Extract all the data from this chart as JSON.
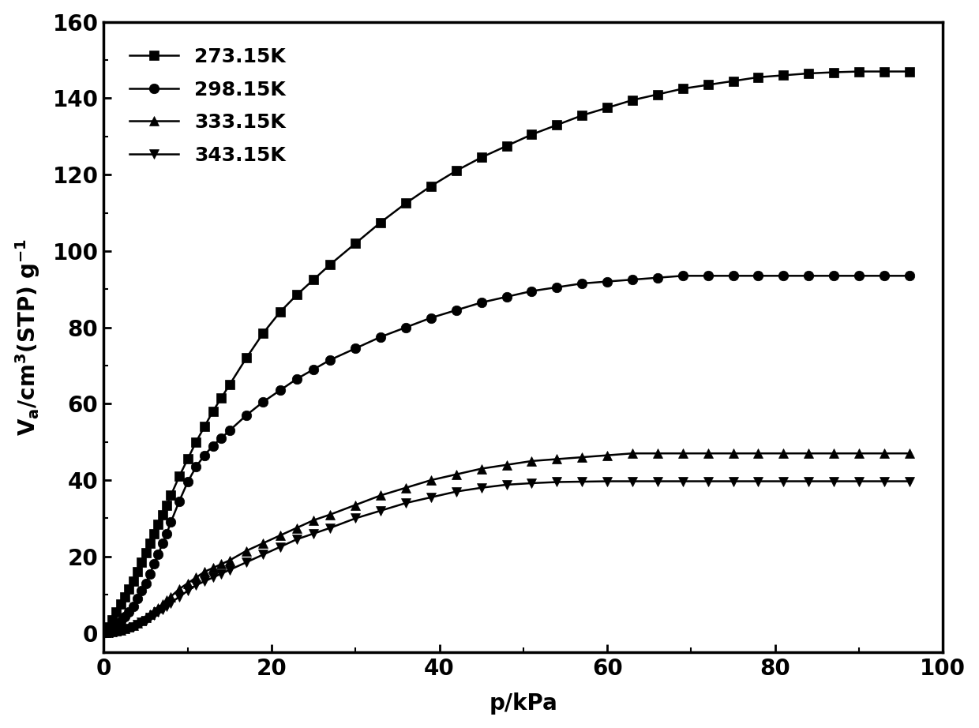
{
  "title": "",
  "xlabel": "p/kPa",
  "ylabel_text": "V_a/cm^3(STP) g^{-1}",
  "xlim": [
    0,
    100
  ],
  "ylim": [
    -5,
    160
  ],
  "xticks": [
    0,
    20,
    40,
    60,
    80,
    100
  ],
  "yticks": [
    0,
    20,
    40,
    60,
    80,
    100,
    120,
    140,
    160
  ],
  "series": [
    {
      "label": "273.15K",
      "marker": "s",
      "x": [
        0.2,
        0.5,
        1.0,
        1.5,
        2.0,
        2.5,
        3.0,
        3.5,
        4.0,
        4.5,
        5.0,
        5.5,
        6.0,
        6.5,
        7.0,
        7.5,
        8.0,
        9.0,
        10.0,
        11.0,
        12.0,
        13.0,
        14.0,
        15.0,
        17.0,
        19.0,
        21.0,
        23.0,
        25.0,
        27.0,
        30.0,
        33.0,
        36.0,
        39.0,
        42.0,
        45.0,
        48.0,
        51.0,
        54.0,
        57.0,
        60.0,
        63.0,
        66.0,
        69.0,
        72.0,
        75.0,
        78.0,
        81.0,
        84.0,
        87.0,
        90.0,
        93.0,
        96.0
      ],
      "y": [
        0.5,
        1.5,
        3.5,
        5.5,
        7.5,
        9.5,
        11.5,
        13.5,
        16.0,
        18.5,
        21.0,
        23.5,
        26.0,
        28.5,
        31.0,
        33.5,
        36.0,
        41.0,
        45.5,
        50.0,
        54.0,
        58.0,
        61.5,
        65.0,
        72.0,
        78.5,
        84.0,
        88.5,
        92.5,
        96.5,
        102.0,
        107.5,
        112.5,
        117.0,
        121.0,
        124.5,
        127.5,
        130.5,
        133.0,
        135.5,
        137.5,
        139.5,
        141.0,
        142.5,
        143.5,
        144.5,
        145.5,
        146.0,
        146.5,
        146.8,
        147.0,
        147.0,
        147.0
      ]
    },
    {
      "label": "298.15K",
      "marker": "o",
      "x": [
        0.2,
        0.5,
        1.0,
        1.5,
        2.0,
        2.5,
        3.0,
        3.5,
        4.0,
        4.5,
        5.0,
        5.5,
        6.0,
        6.5,
        7.0,
        7.5,
        8.0,
        9.0,
        10.0,
        11.0,
        12.0,
        13.0,
        14.0,
        15.0,
        17.0,
        19.0,
        21.0,
        23.0,
        25.0,
        27.0,
        30.0,
        33.0,
        36.0,
        39.0,
        42.0,
        45.0,
        48.0,
        51.0,
        54.0,
        57.0,
        60.0,
        63.0,
        66.0,
        69.0,
        72.0,
        75.0,
        78.0,
        81.0,
        84.0,
        87.0,
        90.0,
        93.0,
        96.0
      ],
      "y": [
        0.2,
        0.5,
        1.2,
        2.0,
        3.0,
        4.2,
        5.5,
        7.0,
        9.0,
        11.0,
        13.0,
        15.5,
        18.0,
        20.5,
        23.5,
        26.0,
        29.0,
        34.5,
        39.5,
        43.5,
        46.5,
        49.0,
        51.0,
        53.0,
        57.0,
        60.5,
        63.5,
        66.5,
        69.0,
        71.5,
        74.5,
        77.5,
        80.0,
        82.5,
        84.5,
        86.5,
        88.0,
        89.5,
        90.5,
        91.5,
        92.0,
        92.5,
        93.0,
        93.5,
        93.5,
        93.5,
        93.5,
        93.5,
        93.5,
        93.5,
        93.5,
        93.5,
        93.5
      ]
    },
    {
      "label": "333.15K",
      "marker": "^",
      "x": [
        0.2,
        0.5,
        1.0,
        1.5,
        2.0,
        2.5,
        3.0,
        3.5,
        4.0,
        4.5,
        5.0,
        5.5,
        6.0,
        6.5,
        7.0,
        7.5,
        8.0,
        9.0,
        10.0,
        11.0,
        12.0,
        13.0,
        14.0,
        15.0,
        17.0,
        19.0,
        21.0,
        23.0,
        25.0,
        27.0,
        30.0,
        33.0,
        36.0,
        39.0,
        42.0,
        45.0,
        48.0,
        51.0,
        54.0,
        57.0,
        60.0,
        63.0,
        66.0,
        69.0,
        72.0,
        75.0,
        78.0,
        81.0,
        84.0,
        87.0,
        90.0,
        93.0,
        96.0
      ],
      "y": [
        0.05,
        0.1,
        0.3,
        0.5,
        0.8,
        1.1,
        1.5,
        2.0,
        2.6,
        3.2,
        4.0,
        4.8,
        5.7,
        6.5,
        7.5,
        8.5,
        9.5,
        11.5,
        13.0,
        14.5,
        16.0,
        17.0,
        18.0,
        19.0,
        21.5,
        23.5,
        25.5,
        27.5,
        29.5,
        31.0,
        33.5,
        36.0,
        38.0,
        40.0,
        41.5,
        43.0,
        44.0,
        45.0,
        45.5,
        46.0,
        46.5,
        47.0,
        47.0,
        47.0,
        47.0,
        47.0,
        47.0,
        47.0,
        47.0,
        47.0,
        47.0,
        47.0,
        47.0
      ]
    },
    {
      "label": "343.15K",
      "marker": "v",
      "x": [
        0.2,
        0.5,
        1.0,
        1.5,
        2.0,
        2.5,
        3.0,
        3.5,
        4.0,
        4.5,
        5.0,
        5.5,
        6.0,
        6.5,
        7.0,
        7.5,
        8.0,
        9.0,
        10.0,
        11.0,
        12.0,
        13.0,
        14.0,
        15.0,
        17.0,
        19.0,
        21.0,
        23.0,
        25.0,
        27.0,
        30.0,
        33.0,
        36.0,
        39.0,
        42.0,
        45.0,
        48.0,
        51.0,
        54.0,
        57.0,
        60.0,
        63.0,
        66.0,
        69.0,
        72.0,
        75.0,
        78.0,
        81.0,
        84.0,
        87.0,
        90.0,
        93.0,
        96.0
      ],
      "y": [
        0.05,
        0.1,
        0.2,
        0.4,
        0.6,
        0.9,
        1.2,
        1.6,
        2.1,
        2.7,
        3.3,
        4.0,
        4.7,
        5.4,
        6.2,
        7.0,
        7.8,
        9.5,
        11.0,
        12.5,
        13.5,
        14.5,
        15.5,
        16.5,
        18.5,
        20.5,
        22.5,
        24.5,
        26.0,
        27.5,
        30.0,
        32.0,
        34.0,
        35.5,
        37.0,
        38.0,
        38.8,
        39.2,
        39.5,
        39.6,
        39.7,
        39.7,
        39.7,
        39.7,
        39.7,
        39.7,
        39.7,
        39.7,
        39.7,
        39.7,
        39.7,
        39.7,
        39.7
      ]
    }
  ],
  "background_color": "#ffffff",
  "line_width": 1.8,
  "marker_size": 9,
  "font_size": 20,
  "legend_fontsize": 18,
  "tick_fontsize": 20
}
